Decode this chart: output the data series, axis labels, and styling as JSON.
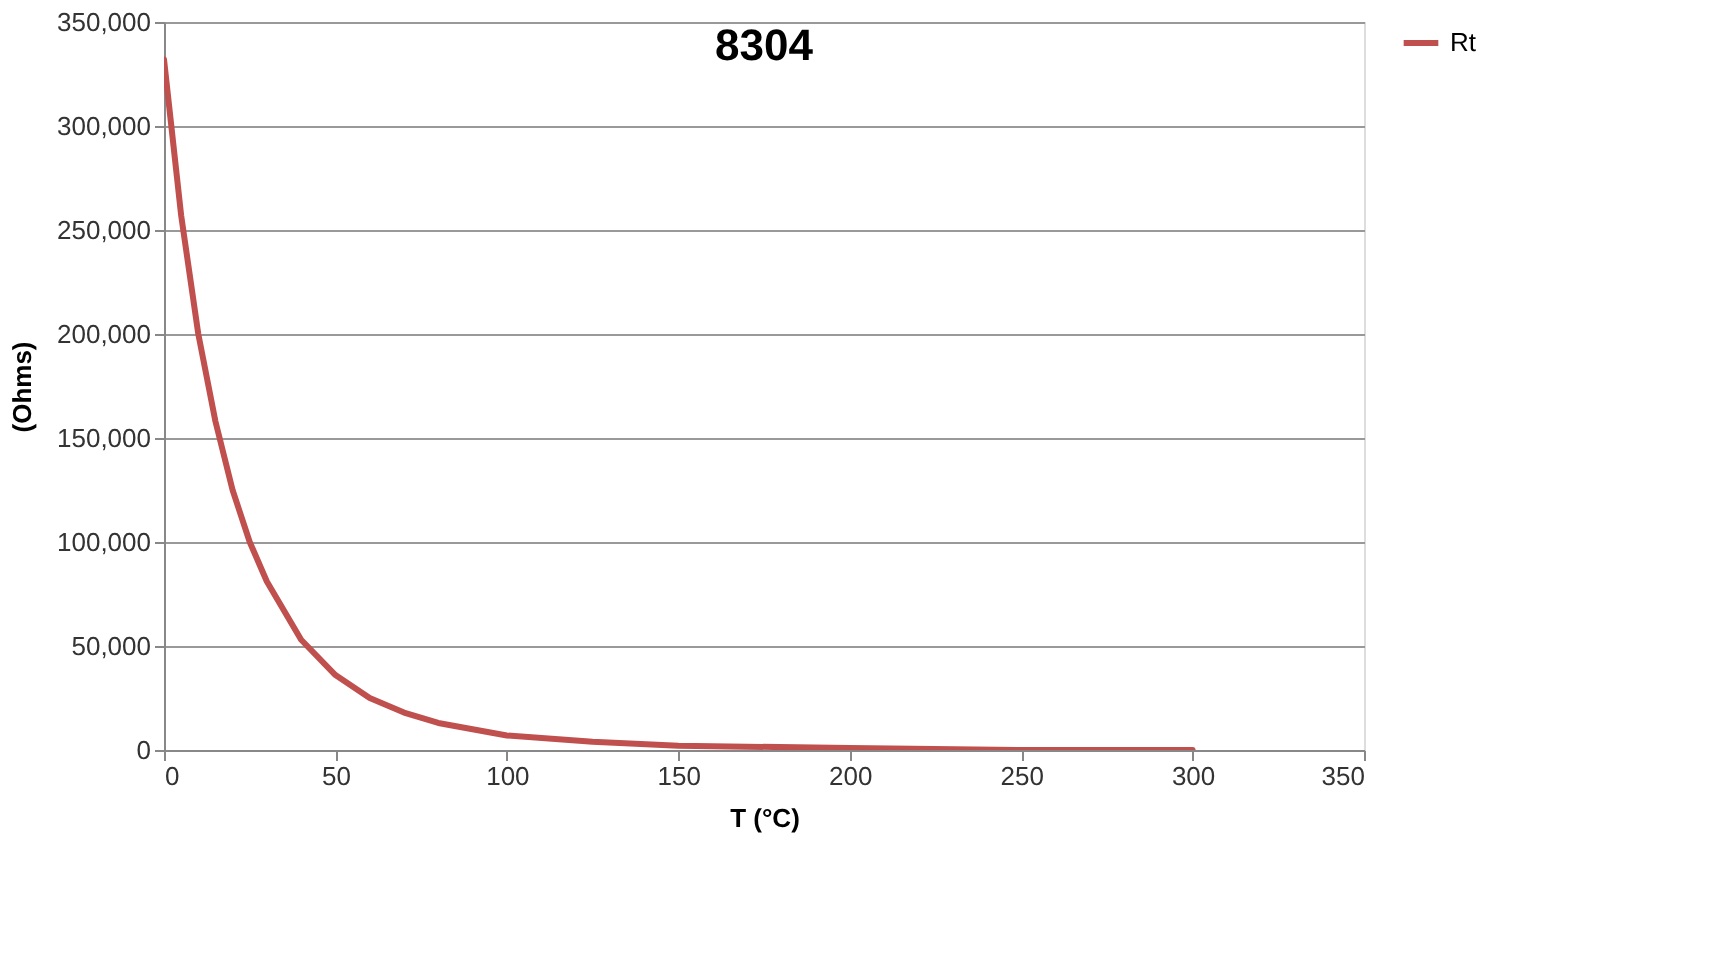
{
  "chart_data": {
    "type": "line",
    "title": "8304",
    "xlabel": "T (°C)",
    "ylabel": "(Ohms)",
    "x": [
      0,
      5,
      10,
      15,
      20,
      25,
      30,
      40,
      50,
      60,
      70,
      80,
      100,
      125,
      150,
      200,
      250,
      300
    ],
    "series": [
      {
        "name": "Rt",
        "color": "#c0504d",
        "values": [
          332000,
          257000,
          200000,
          158000,
          125000,
          100000,
          81000,
          53000,
          36000,
          25000,
          18000,
          13000,
          7000,
          4000,
          2000,
          1000,
          0,
          0
        ]
      }
    ],
    "xlim": [
      0,
      350
    ],
    "xticks": [
      0,
      50,
      100,
      150,
      200,
      250,
      300,
      350
    ],
    "ylim": [
      0,
      350000
    ],
    "yticks": [
      0,
      {
        "value": 50000,
        "label": "50,000"
      },
      {
        "value": 100000,
        "label": "100,000"
      },
      {
        "value": 150000,
        "label": "150,000"
      },
      {
        "value": 200000,
        "label": "200,000"
      },
      {
        "value": 250000,
        "label": "250,000"
      },
      {
        "value": 300000,
        "label": "300,000"
      },
      {
        "value": 350000,
        "label": "350,000"
      }
    ],
    "grid": "y",
    "legend": "right",
    "marker": "none",
    "line_style": "solid"
  }
}
